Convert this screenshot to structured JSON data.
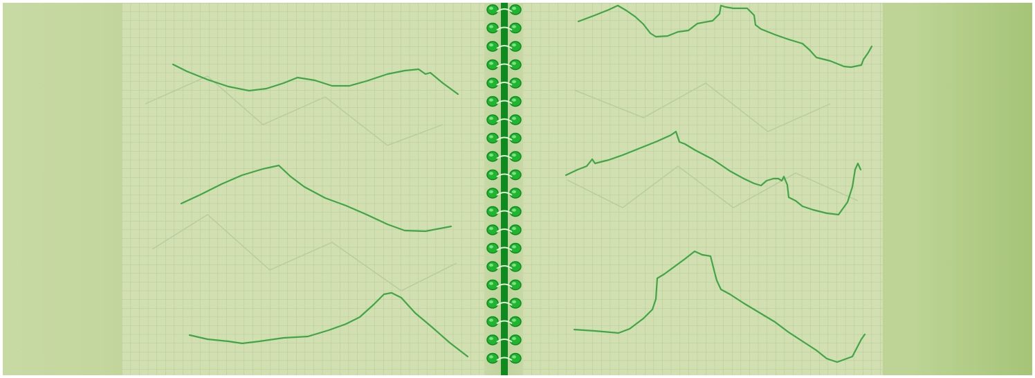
{
  "scene": {
    "description_colors": {
      "background_left": "#c6d9a2",
      "background_right": "#a7c57a",
      "paper": "#d3e1b2",
      "grid_line": "#b4c99a",
      "grid_line_major": "#a4bc88",
      "trace_line": "#3ea446",
      "spiral": "#1fb52e",
      "spiral_dark": "#0f8a1f"
    },
    "icons": [
      "spiral-binding-icon"
    ]
  }
}
